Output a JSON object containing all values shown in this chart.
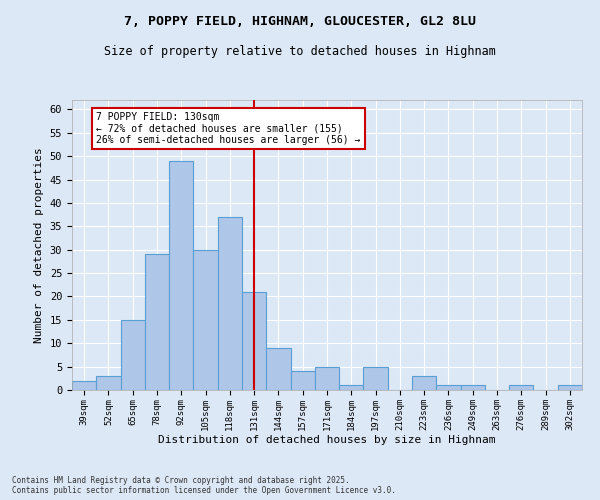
{
  "title_line1": "7, POPPY FIELD, HIGHNAM, GLOUCESTER, GL2 8LU",
  "title_line2": "Size of property relative to detached houses in Highnam",
  "xlabel": "Distribution of detached houses by size in Highnam",
  "ylabel": "Number of detached properties",
  "categories": [
    "39sqm",
    "52sqm",
    "65sqm",
    "78sqm",
    "92sqm",
    "105sqm",
    "118sqm",
    "131sqm",
    "144sqm",
    "157sqm",
    "171sqm",
    "184sqm",
    "197sqm",
    "210sqm",
    "223sqm",
    "236sqm",
    "249sqm",
    "263sqm",
    "276sqm",
    "289sqm",
    "302sqm"
  ],
  "values": [
    2,
    3,
    15,
    29,
    49,
    30,
    37,
    21,
    9,
    4,
    5,
    1,
    5,
    0,
    3,
    1,
    1,
    0,
    1,
    0,
    1
  ],
  "bar_color": "#aec6e8",
  "bar_edge_color": "#5a9fd4",
  "reference_line_x": 7,
  "vline_color": "#cc0000",
  "annotation_text": "7 POPPY FIELD: 130sqm\n← 72% of detached houses are smaller (155)\n26% of semi-detached houses are larger (56) →",
  "annotation_box_color": "#ffffff",
  "annotation_box_edge_color": "#cc0000",
  "ylim": [
    0,
    62
  ],
  "yticks": [
    0,
    5,
    10,
    15,
    20,
    25,
    30,
    35,
    40,
    45,
    50,
    55,
    60
  ],
  "footer_text": "Contains HM Land Registry data © Crown copyright and database right 2025.\nContains public sector information licensed under the Open Government Licence v3.0.",
  "background_color": "#dce8f5",
  "plot_bg_color": "#dce8f5",
  "grid_color": "#ffffff",
  "font_family": "monospace"
}
